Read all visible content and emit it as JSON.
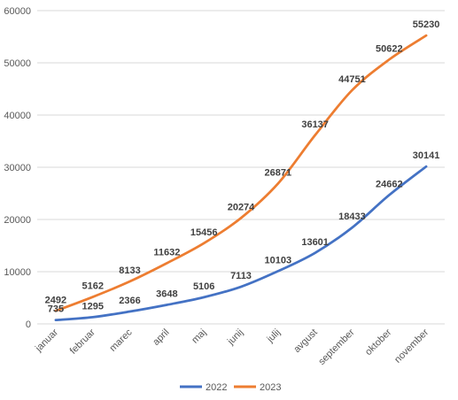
{
  "chart_data": {
    "type": "line",
    "categories": [
      "januar",
      "februar",
      "marec",
      "april",
      "maj",
      "junij",
      "julij",
      "avgust",
      "september",
      "oktober",
      "november"
    ],
    "series": [
      {
        "name": "2022",
        "color": "#4472c4",
        "values": [
          735,
          1295,
          2366,
          3648,
          5106,
          7113,
          10103,
          13601,
          18433,
          24662,
          30141
        ]
      },
      {
        "name": "2023",
        "color": "#ed7d31",
        "values": [
          2492,
          5162,
          8133,
          11632,
          15456,
          20274,
          26871,
          36137,
          44751,
          50622,
          55230
        ]
      }
    ],
    "ylim": [
      0,
      60000
    ],
    "yticks": [
      0,
      10000,
      20000,
      30000,
      40000,
      50000,
      60000
    ],
    "grid": true,
    "legend": "bottom",
    "data_labels": true
  }
}
